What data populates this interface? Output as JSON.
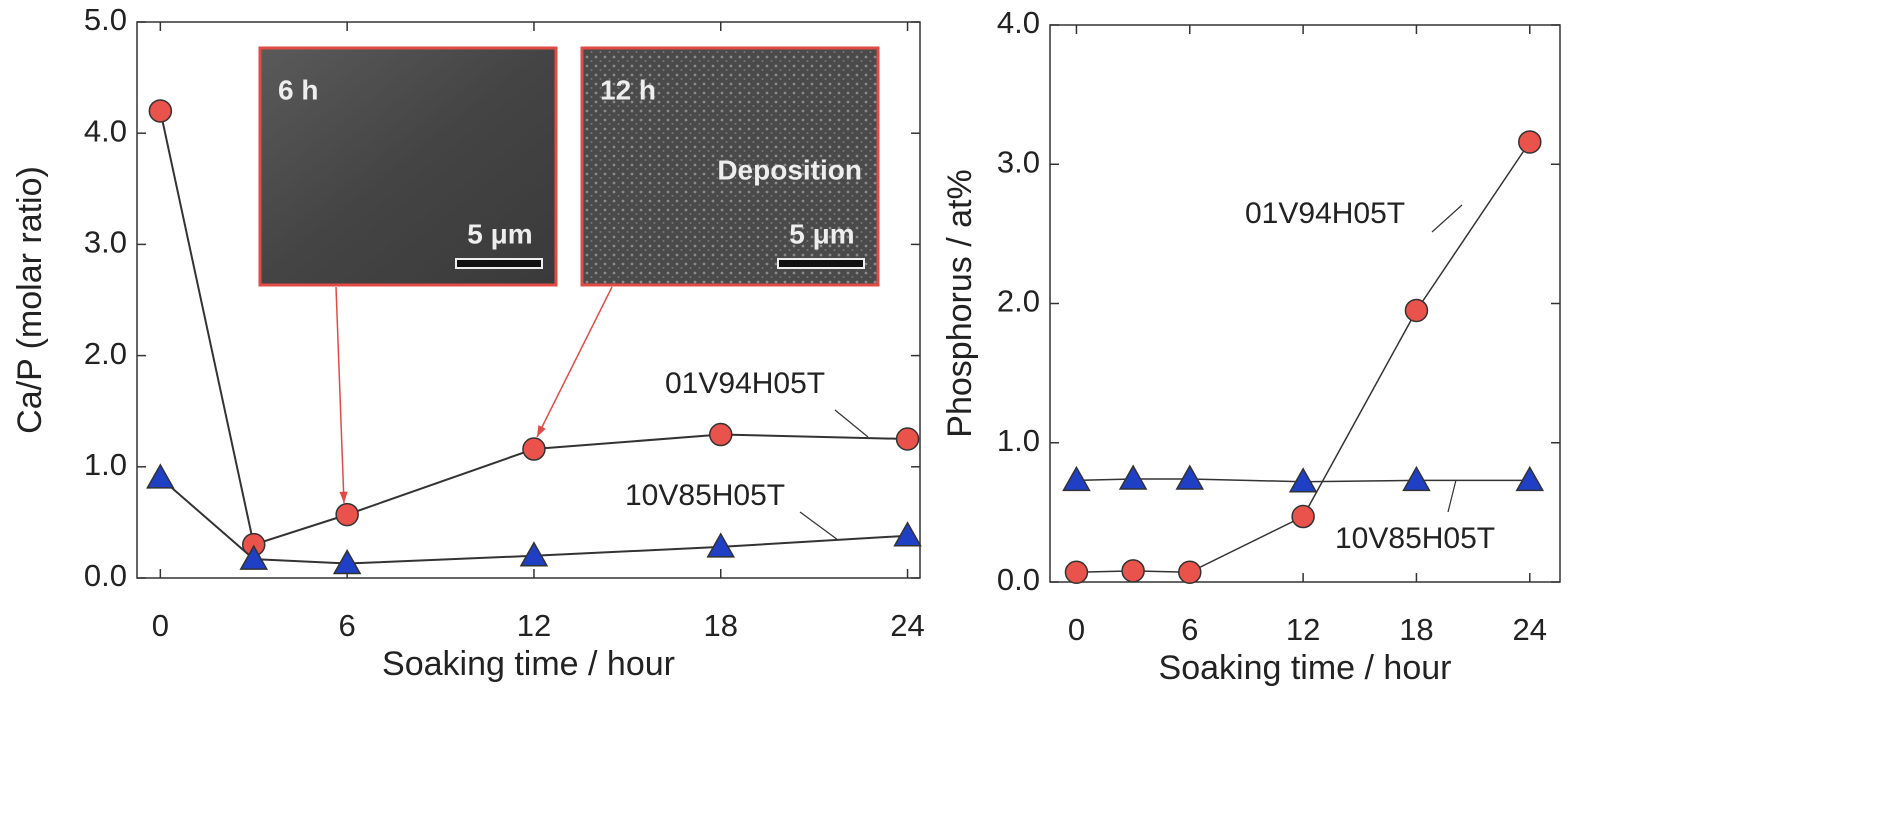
{
  "chart_data": [
    {
      "type": "line",
      "x_label": "Soaking time / hour",
      "y_label": "Ca/P (molar ratio)",
      "x": [
        0,
        3,
        6,
        12,
        18,
        24
      ],
      "series": [
        {
          "name": "01V94H05T",
          "color": "#e9534b",
          "marker": "circle",
          "values": [
            4.2,
            0.3,
            0.57,
            1.16,
            1.29,
            1.25
          ]
        },
        {
          "name": "10V85H05T",
          "color": "#1f3fc4",
          "marker": "triangle",
          "values": [
            0.9,
            0.17,
            0.13,
            0.2,
            0.28,
            0.38
          ]
        }
      ],
      "xlim": [
        -0.75,
        24.4
      ],
      "xticks": [
        0,
        6,
        12,
        18,
        24
      ],
      "ylim": [
        0,
        5
      ],
      "yticks": [
        {
          "value": 0,
          "label": "0.0"
        },
        {
          "value": 1,
          "label": "1.0"
        },
        {
          "value": 2,
          "label": "2.0"
        },
        {
          "value": 3,
          "label": "3.0"
        },
        {
          "value": 4,
          "label": "4.0"
        },
        {
          "value": 5,
          "label": "5.0"
        }
      ],
      "insets": [
        {
          "label": "6 h",
          "scale": "5 μm"
        },
        {
          "label": "12 h",
          "note": "Deposition",
          "scale": "5 μm"
        }
      ]
    },
    {
      "type": "line",
      "x_label": "Soaking time / hour",
      "y_label": "Phosphorus / at%",
      "x": [
        0,
        3,
        6,
        12,
        18,
        24
      ],
      "series": [
        {
          "name": "01V94H05T",
          "color": "#e9534b",
          "marker": "circle",
          "values": [
            0.07,
            0.08,
            0.07,
            0.47,
            1.95,
            3.16
          ]
        },
        {
          "name": "10V85H05T",
          "color": "#1f3fc4",
          "marker": "triangle",
          "values": [
            0.73,
            0.74,
            0.74,
            0.72,
            0.73,
            0.73
          ]
        }
      ],
      "xlim": [
        -1.4,
        25.6
      ],
      "xticks": [
        0,
        6,
        12,
        18,
        24
      ],
      "ylim": [
        0,
        4
      ],
      "yticks": [
        {
          "value": 0,
          "label": "0.0"
        },
        {
          "value": 1,
          "label": "1.0"
        },
        {
          "value": 2,
          "label": "2.0"
        },
        {
          "value": 3,
          "label": "3.0"
        },
        {
          "value": 4,
          "label": "4.0"
        }
      ]
    }
  ]
}
